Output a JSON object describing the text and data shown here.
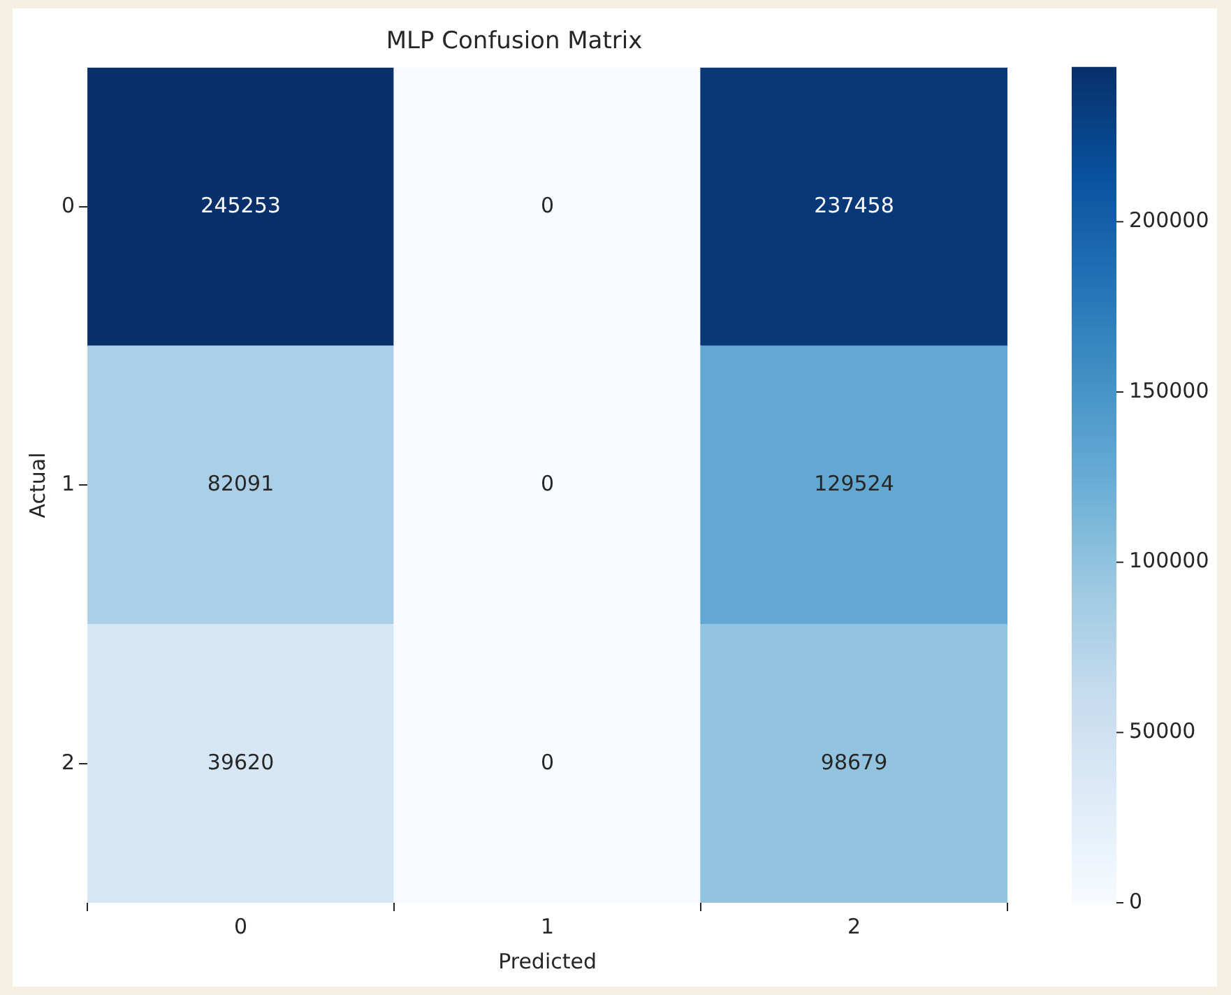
{
  "chart_data": {
    "type": "heatmap",
    "title": "MLP Confusion Matrix",
    "xlabel": "Predicted",
    "ylabel": "Actual",
    "categories": [
      "0",
      "1",
      "2"
    ],
    "y_categories": [
      "0",
      "1",
      "2"
    ],
    "cells": [
      [
        245253,
        0,
        237458
      ],
      [
        82091,
        0,
        129524
      ],
      [
        39620,
        0,
        98679
      ]
    ],
    "clim": [
      0,
      245253
    ],
    "cticks": [
      0,
      50000,
      100000,
      150000,
      200000
    ],
    "data_labels": true,
    "grid": false,
    "legend": false
  }
}
